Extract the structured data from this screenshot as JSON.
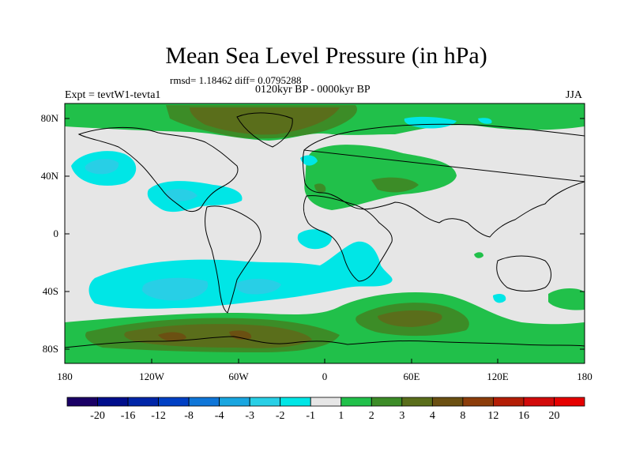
{
  "header": {
    "title": "Mean Sea Level Pressure (in hPa)",
    "stats": "rmsd= 1.18462 diff= 0.0795288",
    "period": "0120kyr BP - 0000kyr BP",
    "experiment": "Expt = tevtW1-tevta1",
    "season": "JJA"
  },
  "map": {
    "lat_labels": [
      "80N",
      "40N",
      "0",
      "40S",
      "80S"
    ],
    "lon_labels": [
      "180",
      "120W",
      "60W",
      "0",
      "60E",
      "120E",
      "180"
    ],
    "background_color": "#e6e6e6"
  },
  "colorbar": {
    "labels": [
      "-20",
      "-16",
      "-12",
      "-8",
      "-4",
      "-3",
      "-2",
      "-1",
      "1",
      "2",
      "3",
      "4",
      "8",
      "12",
      "16",
      "20"
    ],
    "colors": [
      "#1a0066",
      "#000e8c",
      "#0025a8",
      "#0040c4",
      "#0f76d8",
      "#19a6e0",
      "#28cfe6",
      "#00e6e6",
      "#e6e6e6",
      "#21c04a",
      "#3c8c27",
      "#5a6e1b",
      "#6b5012",
      "#8c3d0a",
      "#b41e05",
      "#d20a0a",
      "#e60000"
    ]
  }
}
